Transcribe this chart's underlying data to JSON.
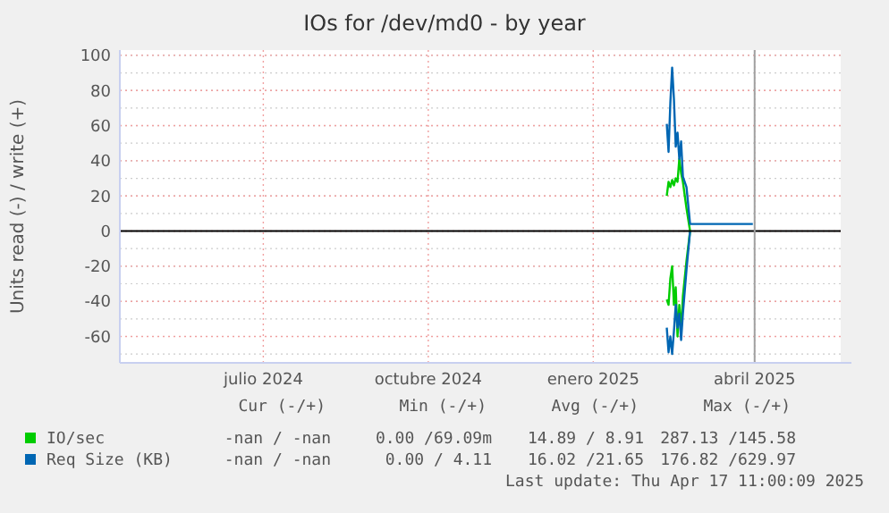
{
  "chart_data": {
    "type": "line",
    "title": "IOs for /dev/md0 - by year",
    "ylabel": "Units read (-) / write (+)",
    "xlim": [
      "2024-04-12",
      "2025-05-19"
    ],
    "ylim": [
      -75,
      103
    ],
    "xticks": [
      {
        "value": "2024-07-01",
        "label": "julio 2024"
      },
      {
        "value": "2024-10-01",
        "label": "octubre 2024"
      },
      {
        "value": "2025-01-01",
        "label": "enero 2025"
      },
      {
        "value": "2025-04-01",
        "label": "abril 2025"
      }
    ],
    "yticks": [
      -60,
      -40,
      -20,
      0,
      20,
      40,
      60,
      80,
      100
    ],
    "grid": true,
    "legend": "bottom",
    "ref_lines": [
      {
        "axis": "y",
        "value": 0,
        "color": "#000000"
      },
      {
        "axis": "x",
        "value": "2025-04-01",
        "color": "#a0a0a0"
      }
    ],
    "series": [
      {
        "name": "IO/sec",
        "color": "#00cc00",
        "x": [
          "2025-02-11",
          "2025-02-12",
          "2025-02-13",
          "2025-02-14",
          "2025-02-15",
          "2025-02-16",
          "2025-02-17",
          "2025-02-18",
          "2025-02-19",
          "2025-02-20",
          "2025-02-22",
          "2025-02-24",
          "2025-02-22",
          "2025-02-20",
          "2025-02-19",
          "2025-02-18",
          "2025-02-17",
          "2025-02-16",
          "2025-02-15",
          "2025-02-14",
          "2025-02-13",
          "2025-02-12",
          "2025-02-11"
        ],
        "values": [
          20,
          28,
          25,
          29,
          26,
          30,
          28,
          41,
          33,
          28,
          13,
          0,
          -17,
          -37,
          -57,
          -42,
          -60,
          -32,
          -42,
          -20,
          -27,
          -42,
          -39
        ]
      },
      {
        "name": "Req Size (KB)",
        "color": "#0066b3",
        "x": [
          "2025-02-11",
          "2025-02-12",
          "2025-02-13",
          "2025-02-14",
          "2025-02-15",
          "2025-02-16",
          "2025-02-17",
          "2025-02-18",
          "2025-02-19",
          "2025-02-20",
          "2025-02-22",
          "2025-02-24",
          "2025-03-31"
        ],
        "values": [
          61,
          45,
          73,
          93,
          75,
          48,
          56,
          41,
          51,
          31,
          25,
          4,
          4
        ]
      },
      {
        "color": "#0066b3",
        "x": [
          "2025-02-11",
          "2025-02-12",
          "2025-02-13",
          "2025-02-14",
          "2025-02-15",
          "2025-02-16",
          "2025-02-17",
          "2025-02-18",
          "2025-02-19",
          "2025-02-20",
          "2025-02-22",
          "2025-02-24"
        ],
        "values": [
          -55,
          -69,
          -60,
          -70,
          -57,
          -42,
          -55,
          -47,
          -62,
          -47,
          -22,
          0
        ]
      }
    ],
    "annotations": [
      "Cur (-/+)",
      "Min (-/+)",
      "Avg (-/+)",
      "Max (-/+)",
      "-nan / -nan",
      "0.00 /69.09m",
      "14.89 / 8.91",
      "287.13 /145.58",
      "-nan / -nan",
      "0.00 / 4.11",
      "16.02 /21.65",
      "176.82 /629.97",
      "Last update: Thu Apr 17 11:00:09 2025"
    ]
  }
}
